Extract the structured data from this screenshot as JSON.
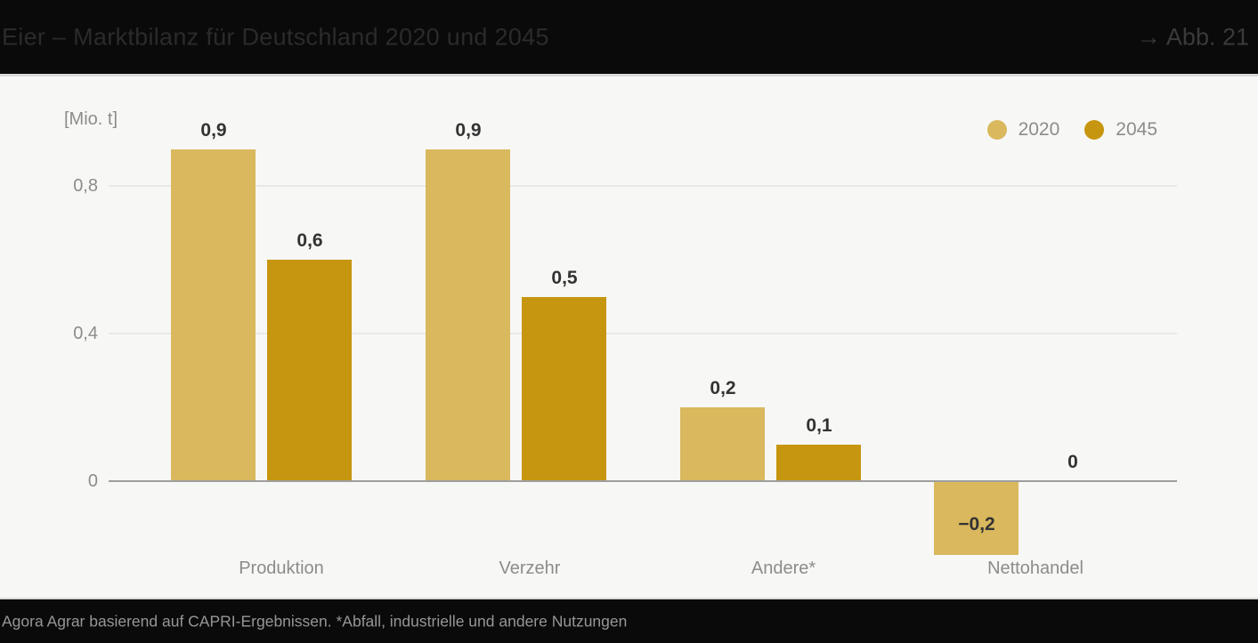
{
  "header": {
    "title": "Eier – Marktbilanz für Deutschland 2020 und 2045",
    "figure_ref": "→ Abb. 21"
  },
  "footer": {
    "source": "Agora Agrar basierend auf CAPRI-Ergebnissen. *Abfall, industrielle und andere Nutzungen"
  },
  "chart_data": {
    "type": "bar",
    "title": "Eier – Marktbilanz für Deutschland 2020 und 2045",
    "unit_label": "[Mio. t]",
    "categories": [
      "Produktion",
      "Verzehr",
      "Andere*",
      "Nettohandel"
    ],
    "series": [
      {
        "name": "2020",
        "color": "#d9b85e",
        "values": [
          0.9,
          0.9,
          0.2,
          -0.2
        ],
        "labels": [
          "0,9",
          "0,9",
          "0,2",
          "−0,2"
        ]
      },
      {
        "name": "2045",
        "color": "#c79610",
        "values": [
          0.6,
          0.5,
          0.1,
          0
        ],
        "labels": [
          "0,6",
          "0,5",
          "0,1",
          "0"
        ]
      }
    ],
    "y_ticks": [
      {
        "value": 0,
        "label": "0"
      },
      {
        "value": 0.4,
        "label": "0,4"
      },
      {
        "value": 0.8,
        "label": "0,8"
      }
    ],
    "ylim": [
      -0.28,
      1.0
    ],
    "grid": true,
    "legend_position": "top-right"
  }
}
